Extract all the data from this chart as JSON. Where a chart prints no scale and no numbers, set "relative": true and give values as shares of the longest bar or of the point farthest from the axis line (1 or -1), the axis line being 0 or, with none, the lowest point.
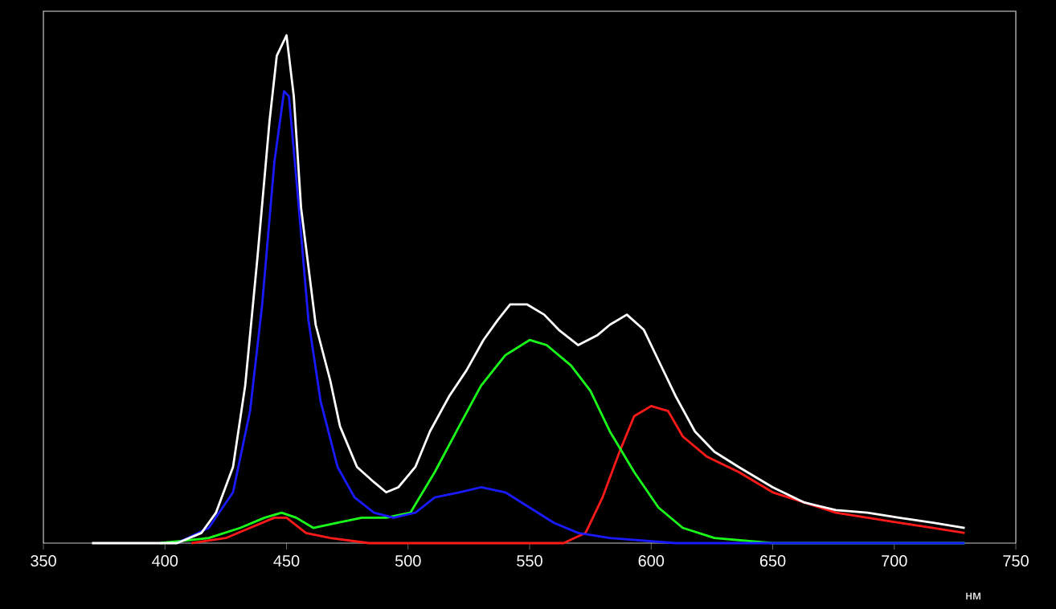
{
  "chart_data": {
    "type": "line",
    "relative": true,
    "xlabel": "нм",
    "xlim": [
      350,
      750
    ],
    "xticks": [
      350,
      400,
      450,
      500,
      550,
      600,
      650,
      700,
      750
    ],
    "marker": "none",
    "line_style": "solid",
    "series": [
      {
        "color": "#ffffff",
        "x": [
          370,
          405,
          415,
          421,
          428,
          433,
          438,
          443,
          446,
          450,
          453,
          456,
          462,
          468,
          472,
          479,
          486,
          491,
          496,
          503,
          509,
          517,
          524,
          531,
          537,
          542,
          549,
          556,
          562,
          570,
          578,
          583,
          590,
          597,
          603,
          610,
          618,
          626,
          636,
          650,
          663,
          676,
          689,
          702,
          716,
          729
        ],
        "values": [
          0.0,
          0.0,
          0.02,
          0.06,
          0.15,
          0.31,
          0.56,
          0.83,
          0.96,
          1.0,
          0.88,
          0.66,
          0.43,
          0.32,
          0.23,
          0.15,
          0.12,
          0.1,
          0.11,
          0.15,
          0.22,
          0.29,
          0.34,
          0.4,
          0.44,
          0.47,
          0.47,
          0.45,
          0.42,
          0.39,
          0.41,
          0.43,
          0.45,
          0.42,
          0.36,
          0.29,
          0.22,
          0.18,
          0.15,
          0.11,
          0.08,
          0.065,
          0.06,
          0.05,
          0.04,
          0.03
        ]
      },
      {
        "color": "#1a1aff",
        "x": [
          405,
          418,
          428,
          435,
          440,
          445,
          449,
          451,
          454,
          459,
          464,
          471,
          478,
          486,
          494,
          503,
          511,
          521,
          530,
          540,
          550,
          560,
          570,
          583,
          610,
          702,
          729
        ],
        "values": [
          0.0,
          0.03,
          0.1,
          0.26,
          0.47,
          0.75,
          0.89,
          0.88,
          0.72,
          0.44,
          0.28,
          0.15,
          0.09,
          0.06,
          0.05,
          0.06,
          0.09,
          0.1,
          0.11,
          0.1,
          0.07,
          0.04,
          0.02,
          0.01,
          0.0,
          0.0,
          0.0
        ]
      },
      {
        "color": "#1aff1a",
        "x": [
          398,
          418,
          431,
          441,
          448,
          454,
          461,
          471,
          481,
          491,
          501,
          511,
          521,
          530,
          540,
          550,
          557,
          567,
          575,
          583,
          593,
          603,
          613,
          626,
          650,
          729
        ],
        "values": [
          0.0,
          0.01,
          0.03,
          0.05,
          0.06,
          0.05,
          0.03,
          0.04,
          0.05,
          0.05,
          0.06,
          0.14,
          0.23,
          0.31,
          0.37,
          0.4,
          0.39,
          0.35,
          0.3,
          0.22,
          0.14,
          0.07,
          0.03,
          0.01,
          0.0,
          0.0
        ]
      },
      {
        "color": "#ff1a1a",
        "x": [
          411,
          425,
          435,
          445,
          450,
          458,
          468,
          484,
          564,
          573,
          580,
          587,
          593,
          600,
          607,
          613,
          623,
          636,
          650,
          663,
          676,
          689,
          702,
          716,
          729
        ],
        "values": [
          0.0,
          0.01,
          0.03,
          0.05,
          0.05,
          0.02,
          0.01,
          0.0,
          0.0,
          0.02,
          0.09,
          0.18,
          0.25,
          0.27,
          0.26,
          0.21,
          0.17,
          0.14,
          0.1,
          0.08,
          0.06,
          0.05,
          0.04,
          0.03,
          0.02
        ]
      }
    ]
  }
}
